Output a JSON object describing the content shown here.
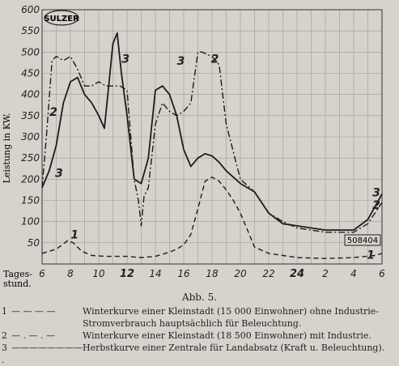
{
  "chart_data": {
    "type": "line",
    "ylabel": "Leistung in KW.",
    "xlabel": "Tages-stund.",
    "xlabel_line1": "Tages-",
    "xlabel_line2": "stund.",
    "x_ticks": [
      "6",
      "8",
      "10",
      "12",
      "14",
      "16",
      "18",
      "20",
      "22",
      "24",
      "2",
      "4",
      "6"
    ],
    "y_ticks": [
      "50",
      "100",
      "150",
      "200",
      "250",
      "300",
      "350",
      "400",
      "450",
      "500",
      "550",
      "600"
    ],
    "xlim": [
      6,
      30
    ],
    "ylim": [
      0,
      600
    ],
    "x_unit": "hour of day (24 = midnight, axis continues to 6 a.m.)",
    "logo_text": "SULZER",
    "stamp_text": "508404",
    "series": [
      {
        "name": "1",
        "style": "dashed",
        "x": [
          6,
          7,
          7.8,
          8.2,
          8.8,
          9.5,
          10.5,
          12,
          13,
          14,
          15,
          15.5,
          16,
          16.5,
          17,
          17.5,
          18,
          18.5,
          19,
          19.5,
          20,
          20.5,
          21,
          22,
          23,
          24,
          26,
          28,
          29.5,
          30
        ],
        "y": [
          25,
          35,
          55,
          50,
          30,
          20,
          18,
          18,
          15,
          18,
          28,
          35,
          45,
          70,
          130,
          195,
          205,
          195,
          175,
          150,
          120,
          80,
          40,
          25,
          20,
          15,
          13,
          15,
          20,
          25
        ]
      },
      {
        "name": "2",
        "style": "dash-dot",
        "x": [
          6,
          6.3,
          6.7,
          7,
          7.5,
          8,
          8.5,
          9,
          9.5,
          10,
          10.5,
          11,
          11.5,
          12,
          12.5,
          12.8,
          13,
          13.2,
          13.5,
          14,
          14.5,
          15,
          15.5,
          16,
          16.5,
          17,
          17.3,
          17.6,
          18,
          18.5,
          19,
          20,
          21,
          22,
          23,
          24,
          26,
          28,
          29,
          30
        ],
        "y": [
          180,
          300,
          480,
          490,
          480,
          490,
          460,
          420,
          420,
          430,
          420,
          420,
          420,
          410,
          200,
          150,
          90,
          160,
          180,
          330,
          380,
          360,
          350,
          360,
          380,
          500,
          500,
          495,
          490,
          470,
          330,
          200,
          170,
          120,
          100,
          85,
          75,
          75,
          95,
          145
        ]
      },
      {
        "name": "3",
        "style": "solid",
        "x": [
          6,
          6.5,
          7,
          7.5,
          8,
          8.5,
          9,
          9.5,
          10,
          10.4,
          10.7,
          11,
          11.3,
          11.6,
          12,
          12.5,
          13,
          13.5,
          14,
          14.5,
          15,
          15.5,
          16,
          16.5,
          17,
          17.5,
          18,
          18.5,
          19,
          20,
          21,
          22,
          23,
          24,
          26,
          28,
          29,
          30
        ],
        "y": [
          180,
          220,
          280,
          380,
          430,
          440,
          400,
          380,
          350,
          320,
          420,
          520,
          545,
          450,
          350,
          200,
          190,
          250,
          410,
          420,
          400,
          350,
          270,
          230,
          250,
          260,
          255,
          240,
          220,
          190,
          170,
          120,
          95,
          90,
          80,
          80,
          105,
          165
        ]
      }
    ],
    "series_tags": [
      {
        "label": "1",
        "x": 8.3,
        "y": 60
      },
      {
        "label": "1",
        "x": 29.2,
        "y": 12
      },
      {
        "label": "2",
        "x": 6.8,
        "y": 350
      },
      {
        "label": "2",
        "x": 29.6,
        "y": 130
      },
      {
        "label": "2",
        "x": 18.2,
        "y": 475
      },
      {
        "label": "3",
        "x": 7.2,
        "y": 205
      },
      {
        "label": "3",
        "x": 11.9,
        "y": 475
      },
      {
        "label": "3",
        "x": 15.8,
        "y": 470
      },
      {
        "label": "3",
        "x": 29.6,
        "y": 160
      }
    ],
    "grid": true
  },
  "caption": "Abb. 5.",
  "legend": [
    {
      "num": "1",
      "symbol": "— — — —",
      "text": "Winterkurve einer Kleinstadt (15 000 Einwohner) ohne Industrie-Stromverbrauch hauptsächlich für Beleuchtung."
    },
    {
      "num": "2",
      "symbol": "— . — . —",
      "text": "Winterkurve einer Kleinstadt (18 500 Einwohner) mit Industrie."
    },
    {
      "num": "3 .",
      "symbol": "————————",
      "text": "Herbstkurve einer Zentrale für Landabsatz (Kraft u. Beleuchtung)."
    }
  ]
}
